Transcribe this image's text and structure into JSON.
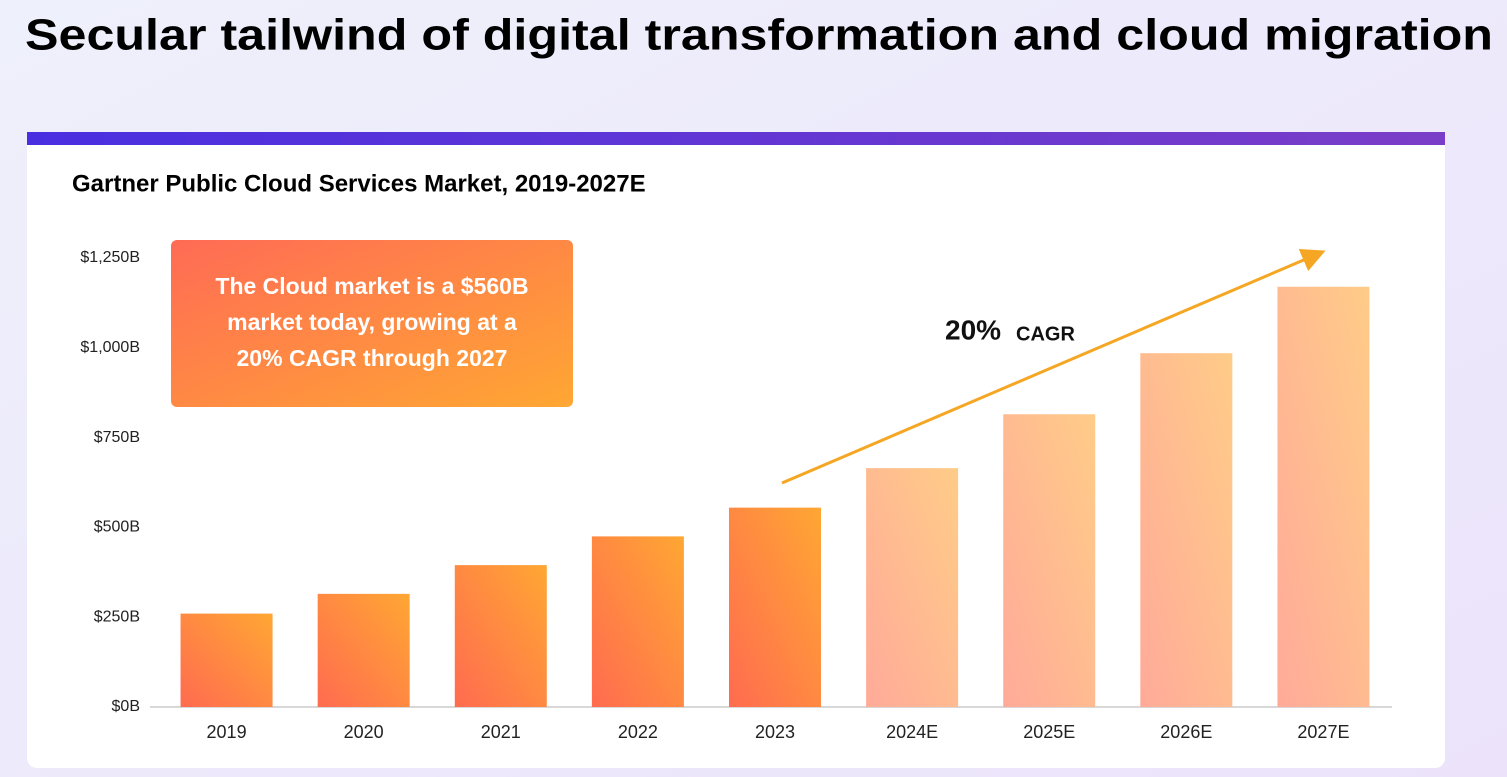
{
  "header": {
    "title": "Secular tailwind of digital transformation and cloud migration"
  },
  "chart_data": {
    "type": "bar",
    "title": "Gartner Public Cloud Services Market, 2019-2027E",
    "categories": [
      "2019",
      "2020",
      "2021",
      "2022",
      "2023",
      "2024E",
      "2025E",
      "2026E",
      "2027E"
    ],
    "values": [
      260,
      315,
      395,
      475,
      555,
      665,
      815,
      985,
      1170
    ],
    "colors": [
      [
        "#ffa733",
        "#ff6b50"
      ],
      [
        "#ffa733",
        "#ff6b50"
      ],
      [
        "#ffa733",
        "#ff6b50"
      ],
      [
        "#ffa733",
        "#ff6b50"
      ],
      [
        "#ffa733",
        "#ff6b50"
      ],
      [
        "#ffcc88",
        "#ffaa99"
      ],
      [
        "#ffcc88",
        "#ffaa99"
      ],
      [
        "#ffcc88",
        "#ffaa99"
      ],
      [
        "#ffcc88",
        "#ffaa99"
      ]
    ],
    "ylim": [
      0,
      1250
    ],
    "yticks": [
      {
        "value": 0,
        "label": "$0B"
      },
      {
        "value": 250,
        "label": "$250B"
      },
      {
        "value": 500,
        "label": "$500B"
      },
      {
        "value": 750,
        "label": "$750B"
      },
      {
        "value": 1000,
        "label": "$1,000B"
      },
      {
        "value": 1250,
        "label": "$1,250B"
      }
    ],
    "callout": [
      "The Cloud market is a $560B",
      "market today, growing at a",
      "20% CAGR through 2027"
    ],
    "trend_label": "20%",
    "trend_unit": "CAGR",
    "trend_color": "#f5a623"
  }
}
